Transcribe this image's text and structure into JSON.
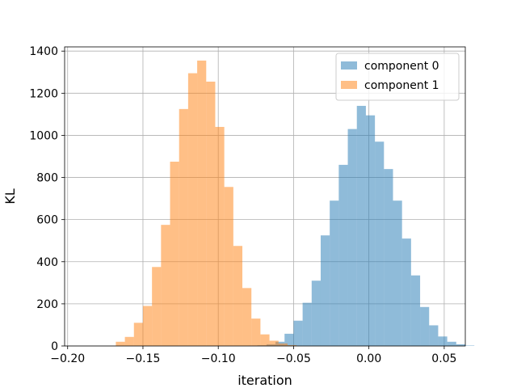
{
  "chart_data": {
    "type": "histogram",
    "xlabel": "iteration",
    "ylabel": "KL",
    "xlim": [
      -0.202,
      0.064
    ],
    "ylim": [
      0,
      1420
    ],
    "x_ticks": [
      -0.2,
      -0.15,
      -0.1,
      -0.05,
      0.0,
      0.05
    ],
    "x_tick_labels": [
      "−0.20",
      "−0.15",
      "−0.10",
      "−0.05",
      "0.00",
      "0.05"
    ],
    "y_ticks": [
      0,
      200,
      400,
      600,
      800,
      1000,
      1200,
      1400
    ],
    "y_tick_labels": [
      "0",
      "200",
      "400",
      "600",
      "800",
      "1000",
      "1200",
      "1400"
    ],
    "grid": true,
    "legend_position": "top-right",
    "bin_width": 0.006,
    "series": [
      {
        "name": "component 0",
        "color": "#1f77b4",
        "opacity": 0.5,
        "bin_start": -0.08,
        "values": [
          1,
          3,
          8,
          20,
          58,
          120,
          205,
          310,
          525,
          690,
          860,
          1030,
          1140,
          1095,
          970,
          840,
          690,
          510,
          335,
          185,
          98,
          45,
          20,
          8,
          2
        ]
      },
      {
        "name": "component 1",
        "color": "#ff7f0e",
        "opacity": 0.5,
        "bin_start": -0.168,
        "values": [
          20,
          43,
          110,
          190,
          375,
          575,
          875,
          1125,
          1295,
          1355,
          1255,
          1040,
          755,
          475,
          275,
          130,
          55,
          25,
          12,
          4
        ]
      }
    ]
  }
}
